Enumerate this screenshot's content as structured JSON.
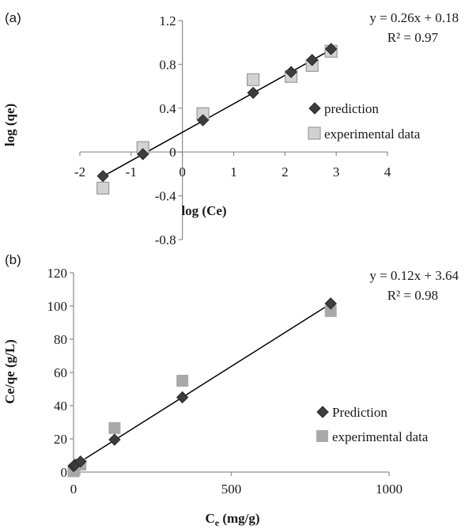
{
  "chart_data": [
    {
      "panel_label": "(a)",
      "type": "scatter",
      "xlabel": "log (Ce)",
      "ylabel": "log (qe)",
      "xlim": [
        -2,
        4
      ],
      "ylim": [
        -0.8,
        1.2
      ],
      "xticks": [
        -2,
        -1,
        0,
        1,
        2,
        3,
        4
      ],
      "yticks": [
        -0.8,
        -0.4,
        0,
        0.4,
        0.8,
        1.2
      ],
      "xtick_labels": [
        "-2",
        "-1",
        "0",
        "1",
        "2",
        "3",
        "4"
      ],
      "ytick_labels": [
        "-0.8",
        "-0.4",
        "0",
        "0.4",
        "0.8",
        "1.2"
      ],
      "grid": false,
      "legend_position": "right",
      "equation": "y = 0.26x + 0.18",
      "r_squared": "R² = 0.97",
      "trendline": {
        "slope": 0.26,
        "intercept": 0.18,
        "x_range": [
          -1.55,
          2.9
        ]
      },
      "series": [
        {
          "name": "prediction",
          "marker": "diamond",
          "color": "#3d3d3d",
          "points": [
            [
              -1.55,
              -0.22
            ],
            [
              -0.77,
              -0.02
            ],
            [
              0.4,
              0.29
            ],
            [
              1.38,
              0.54
            ],
            [
              2.12,
              0.73
            ],
            [
              2.53,
              0.84
            ],
            [
              2.9,
              0.94
            ]
          ]
        },
        {
          "name": "experimental data",
          "marker": "square",
          "color": "#d2d2d2",
          "edge_color": "#9a9a9a",
          "points": [
            [
              -1.55,
              -0.33
            ],
            [
              -0.77,
              0.04
            ],
            [
              0.4,
              0.35
            ],
            [
              1.38,
              0.66
            ],
            [
              2.12,
              0.69
            ],
            [
              2.53,
              0.79
            ],
            [
              2.9,
              0.92
            ]
          ]
        }
      ]
    },
    {
      "panel_label": "(b)",
      "type": "scatter",
      "xlabel": "C",
      "xlabel_subscript": "e",
      "xlabel_suffix": " (mg/g)",
      "ylabel": "Ce/qe (g/L)",
      "xlim": [
        0,
        1000
      ],
      "ylim": [
        0,
        120
      ],
      "xticks": [
        0,
        500,
        1000
      ],
      "yticks": [
        0,
        20,
        40,
        60,
        80,
        100,
        120
      ],
      "xtick_labels": [
        "0",
        "500",
        "1000"
      ],
      "ytick_labels": [
        "0",
        "20",
        "40",
        "60",
        "80",
        "100",
        "120"
      ],
      "grid": false,
      "legend_position": "right",
      "equation": "y = 0.12x + 3.64",
      "r_squared": "R² = 0.98",
      "trendline": {
        "slope": 0.12,
        "intercept": 3.64,
        "x_range": [
          0,
          815
        ]
      },
      "series": [
        {
          "name": "Prediction",
          "marker": "diamond",
          "color": "#3d3d3d",
          "points": [
            [
              0,
              3.6
            ],
            [
              5,
              4.3
            ],
            [
              22,
              6.3
            ],
            [
              130,
              19.5
            ],
            [
              345,
              45
            ],
            [
              815,
              101.5
            ]
          ]
        },
        {
          "name": "experimental data",
          "marker": "square",
          "color": "#a9a9a9",
          "points": [
            [
              0,
              0.5
            ],
            [
              3,
              1.5
            ],
            [
              22,
              4.5
            ],
            [
              130,
              26.5
            ],
            [
              345,
              55
            ],
            [
              815,
              97
            ]
          ]
        }
      ]
    }
  ]
}
